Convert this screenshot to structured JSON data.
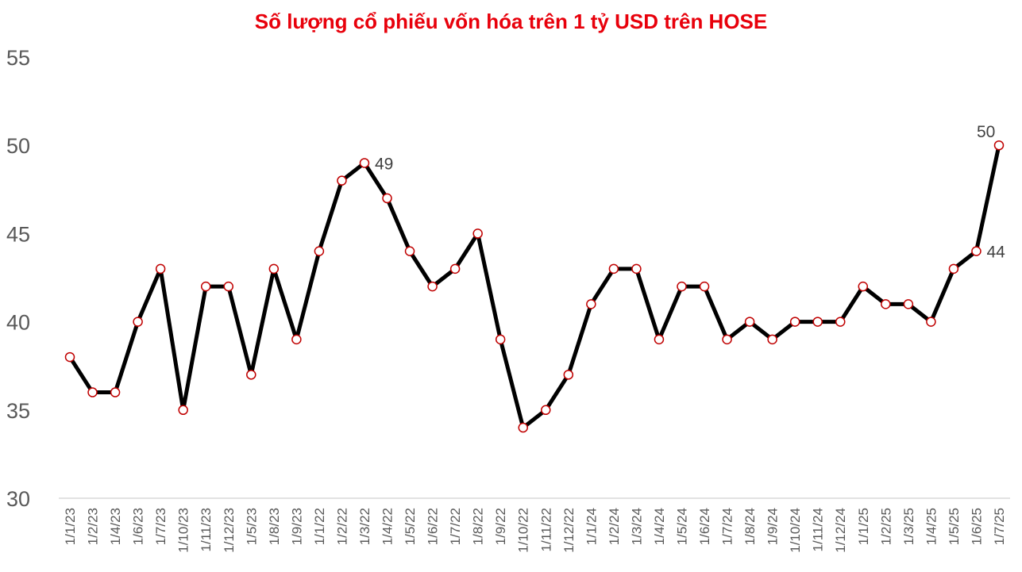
{
  "chart_data": {
    "type": "line",
    "title": "Số lượng cổ phiếu vốn hóa trên 1 tỷ USD trên HOSE",
    "xlabel": "",
    "ylabel": "",
    "ylim": [
      30,
      55
    ],
    "yticks": [
      30,
      35,
      40,
      45,
      50,
      55
    ],
    "grid": false,
    "legend": null,
    "categories": [
      "1/1/23",
      "1/2/23",
      "1/4/23",
      "1/6/23",
      "1/7/23",
      "1/10/23",
      "1/11/23",
      "1/12/23",
      "1/5/23",
      "1/8/23",
      "1/9/23",
      "1/1/22",
      "1/2/22",
      "1/3/22",
      "1/4/22",
      "1/5/22",
      "1/6/22",
      "1/7/22",
      "1/8/22",
      "1/9/22",
      "1/10/22",
      "1/11/22",
      "1/12/22",
      "1/1/24",
      "1/2/24",
      "1/3/24",
      "1/4/24",
      "1/5/24",
      "1/6/24",
      "1/7/24",
      "1/8/24",
      "1/9/24",
      "1/10/24",
      "1/11/24",
      "1/12/24",
      "1/1/25",
      "1/2/25",
      "1/3/25",
      "1/4/25",
      "1/5/25",
      "1/6/25",
      "1/7/25"
    ],
    "series": [
      {
        "name": "Số lượng cổ phiếu",
        "values": [
          38,
          36,
          36,
          40,
          43,
          35,
          42,
          42,
          37,
          43,
          39,
          44,
          48,
          49,
          47,
          44,
          42,
          43,
          45,
          39,
          34,
          35,
          37,
          41,
          43,
          43,
          39,
          42,
          42,
          39,
          40,
          39,
          40,
          40,
          40,
          42,
          41,
          41,
          40,
          43,
          44,
          50
        ],
        "line_color": "#000000",
        "marker_edge_color": "#c00000",
        "marker_fill": "#ffffff"
      }
    ],
    "annotations": [
      {
        "index": 13,
        "label": "49",
        "position": "right"
      },
      {
        "index": 40,
        "label": "44",
        "position": "right"
      },
      {
        "index": 41,
        "label": "50",
        "position": "above-left"
      }
    ]
  },
  "title_color": "#e8000b"
}
